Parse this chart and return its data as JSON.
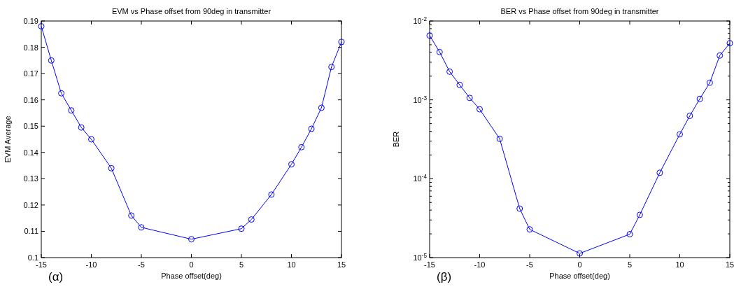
{
  "chart_data": [
    {
      "type": "line",
      "title": "EVM vs Phase offset from 90deg in transmitter",
      "xlabel": "Phase offset(deg)",
      "ylabel": "EVM Average",
      "x": [
        -15,
        -14,
        -13,
        -12,
        -11,
        -10,
        -8,
        -6,
        -5,
        0,
        5,
        6,
        8,
        10,
        11,
        12,
        13,
        14,
        15
      ],
      "series": [
        {
          "color": "#0000ff",
          "values": [
            0.188,
            0.175,
            0.1625,
            0.156,
            0.1495,
            0.145,
            0.134,
            0.116,
            0.1115,
            0.107,
            0.111,
            0.1145,
            0.124,
            0.1355,
            0.142,
            0.149,
            0.157,
            0.1725,
            0.182
          ]
        }
      ],
      "xlim": [
        -15,
        15
      ],
      "xticks": [
        -15,
        -10,
        -5,
        0,
        5,
        10,
        15
      ],
      "ylim": [
        0.1,
        0.19
      ],
      "yticks": [
        0.1,
        0.11,
        0.12,
        0.13,
        0.14,
        0.15,
        0.16,
        0.17,
        0.18,
        0.19
      ],
      "marker": "circle",
      "line_style": "solid",
      "grid": false,
      "annotations": [
        "(α)"
      ]
    },
    {
      "type": "line",
      "title": "BER vs Phase offset from 90deg in transmitter",
      "xlabel": "Phase offset(deg)",
      "ylabel": "BER",
      "x": [
        -15,
        -14,
        -13,
        -12,
        -11,
        -10,
        -8,
        -6,
        -5,
        0,
        5,
        6,
        8,
        10,
        11,
        12,
        13,
        14,
        15
      ],
      "series": [
        {
          "color": "#0000ff",
          "values": [
            0.00655,
            0.00404,
            0.00228,
            0.00155,
            0.00106,
            0.00076,
            0.000321,
            4.18e-05,
            2.28e-05,
            1.13e-05,
            1.98e-05,
            3.48e-05,
            0.000119,
            0.000366,
            0.000627,
            0.00103,
            0.00165,
            0.00365,
            0.00523
          ]
        }
      ],
      "xlim": [
        -15,
        15
      ],
      "xticks": [
        -15,
        -10,
        -5,
        0,
        5,
        10,
        15
      ],
      "ylim": [
        1e-05,
        0.01
      ],
      "yticks": [
        {
          "value": 1e-05,
          "label": "10$^{-5}$"
        },
        {
          "value": 0.0001,
          "label": "10$^{-4}$"
        },
        {
          "value": 0.001,
          "label": "10$^{-3}$"
        },
        {
          "value": 0.01,
          "label": "10$^{-2}$"
        }
      ],
      "log": "y",
      "marker": "circle",
      "line_style": "solid",
      "grid": false,
      "annotations": [
        "(β)"
      ]
    }
  ]
}
